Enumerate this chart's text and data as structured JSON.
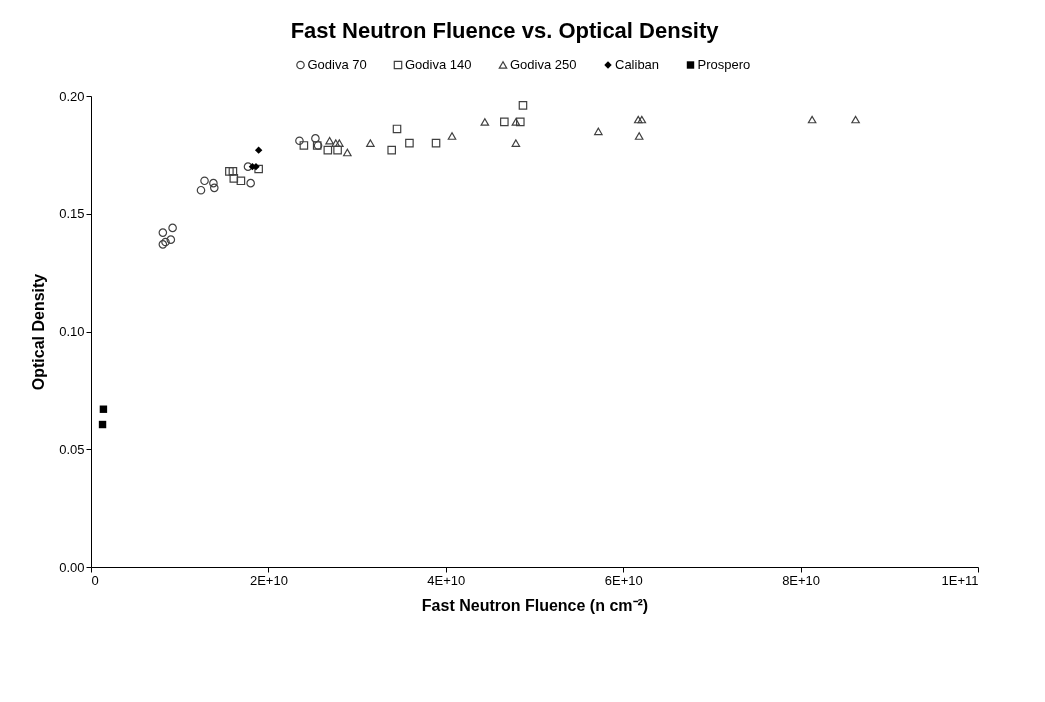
{
  "chart_data": {
    "type": "scatter",
    "title": "Fast Neutron Fluence vs. Optical Density",
    "xlabel": "Fast Neutron Fluence (n cm⁻²)",
    "ylabel": "Optical Density",
    "xlim": [
      0,
      100000000000.0
    ],
    "xticks": [
      0,
      {
        "value": 20000000000.0,
        "label": "2E+10"
      },
      {
        "value": 40000000000.0,
        "label": "4E+10"
      },
      {
        "value": 60000000000.0,
        "label": "6E+10"
      },
      {
        "value": 80000000000.0,
        "label": "8E+10"
      },
      {
        "value": 100000000000.0,
        "label": "1E+11"
      }
    ],
    "ylim": [
      0,
      0.2
    ],
    "yticks": [
      {
        "value": 0,
        "label": "0.00"
      },
      {
        "value": 0.05,
        "label": "0.05"
      },
      {
        "value": 0.1,
        "label": "0.10"
      },
      {
        "value": 0.15,
        "label": "0.15"
      },
      {
        "value": 0.2,
        "label": "0.20"
      }
    ],
    "grid": false,
    "legend": "top",
    "series": [
      {
        "name": "Godiva 70",
        "color": "#404040",
        "marker": "circle",
        "x": [
          8100000000.0,
          9200000000.0,
          8100000000.0,
          8400000000.0,
          9000000000.0,
          12400000000.0,
          12800000000.0,
          13800000000.0,
          13900000000.0,
          18000000000.0,
          23500000000.0,
          25300000000.0,
          17700000000.0,
          25600000000.0
        ],
        "values": [
          0.142,
          0.144,
          0.137,
          0.138,
          0.139,
          0.16,
          0.164,
          0.163,
          0.161,
          0.163,
          0.181,
          0.182,
          0.17,
          0.179
        ]
      },
      {
        "name": "Godiva 140",
        "color": "#404040",
        "marker": "square",
        "x": [
          15600000000.0,
          16000000000.0,
          16100000000.0,
          16900000000.0,
          18900000000.0,
          24000000000.0,
          25500000000.0,
          26700000000.0,
          27800000000.0,
          33900000000.0,
          34500000000.0,
          35900000000.0,
          38900000000.0,
          46600000000.0,
          48400000000.0,
          48700000000.0
        ],
        "values": [
          0.168,
          0.168,
          0.165,
          0.164,
          0.169,
          0.179,
          0.179,
          0.177,
          0.177,
          0.177,
          0.186,
          0.18,
          0.18,
          0.189,
          0.189,
          0.196
        ]
      },
      {
        "name": "Godiva 250",
        "color": "#404040",
        "marker": "triangle",
        "x": [
          26900000000.0,
          27600000000.0,
          28000000000.0,
          28900000000.0,
          31500000000.0,
          40700000000.0,
          44400000000.0,
          47900000000.0,
          47900000000.0,
          57200000000.0,
          61700000000.0,
          62100000000.0,
          61800000000.0,
          81300000000.0,
          86200000000.0
        ],
        "values": [
          0.181,
          0.18,
          0.18,
          0.176,
          0.18,
          0.183,
          0.189,
          0.189,
          0.18,
          0.185,
          0.19,
          0.19,
          0.183,
          0.19,
          0.19
        ]
      },
      {
        "name": "Caliban",
        "color": "#000000",
        "marker": "diamond",
        "x": [
          18900000000.0,
          18200000000.0,
          18600000000.0
        ],
        "values": [
          0.177,
          0.17,
          0.17
        ]
      },
      {
        "name": "Prospero",
        "color": "#000000",
        "marker": "square",
        "x": [
          1400000000.0,
          1300000000.0
        ],
        "values": [
          0.067,
          0.0605
        ]
      }
    ]
  }
}
